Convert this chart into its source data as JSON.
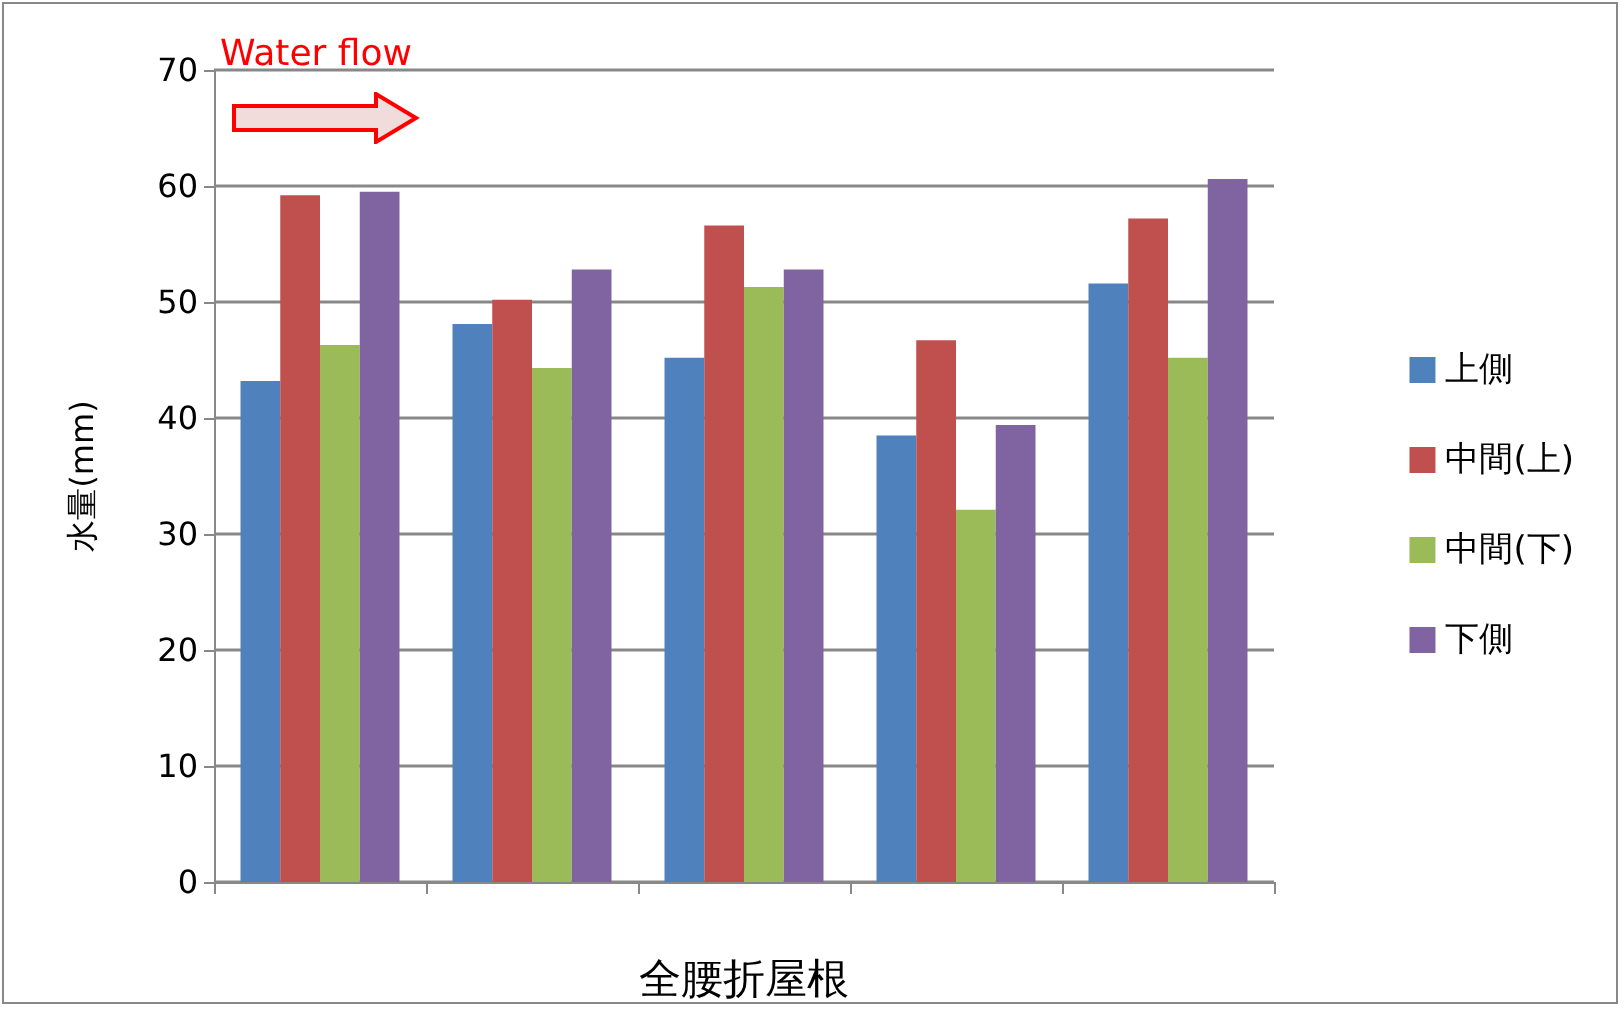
{
  "chart_data": {
    "type": "bar",
    "xlabel": "全腰折屋根",
    "ylabel": "水量(mm)",
    "categories": [
      null,
      null,
      null,
      null,
      null
    ],
    "series": [
      {
        "name": "上側",
        "color": "#4f81bd",
        "values": [
          43.2,
          48.1,
          45.2,
          38.5,
          51.6
        ]
      },
      {
        "name": "中間(上)",
        "color": "#c0504d",
        "values": [
          59.2,
          50.2,
          56.6,
          46.7,
          57.2
        ]
      },
      {
        "name": "中間(下)",
        "color": "#9bbb59",
        "values": [
          46.3,
          44.3,
          51.3,
          32.1,
          45.2
        ]
      },
      {
        "name": "下側",
        "color": "#8064a2",
        "values": [
          59.5,
          52.8,
          52.8,
          39.4,
          60.6
        ]
      }
    ],
    "ylim": [
      0,
      70
    ],
    "yticks": [
      0,
      10,
      20,
      30,
      40,
      50,
      60,
      70
    ],
    "grid": "y",
    "legend": "right",
    "annotations": [
      "Water flow"
    ]
  }
}
